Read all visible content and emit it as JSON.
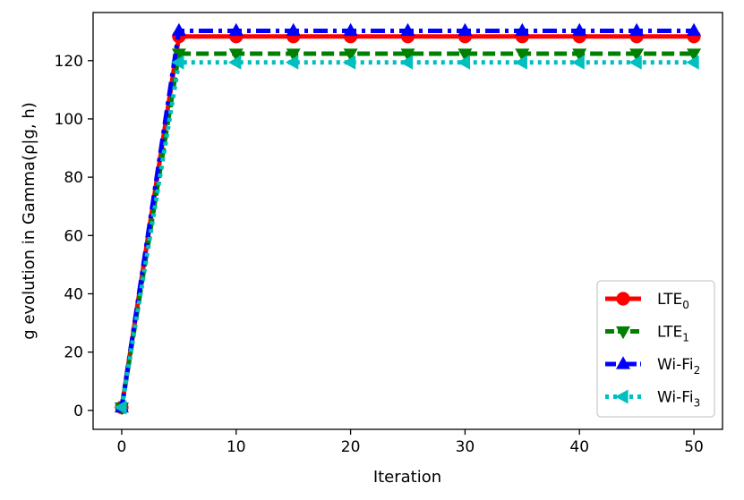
{
  "chart_data": {
    "type": "line",
    "xlabel": "Iteration",
    "ylabel": "g evolution in Gamma(ρ|g, h)",
    "xlim": [
      -2.5,
      52.5
    ],
    "ylim": [
      -6.5,
      136.5
    ],
    "xticks": [
      0,
      10,
      20,
      30,
      40,
      50
    ],
    "yticks": [
      0,
      20,
      40,
      60,
      80,
      100,
      120
    ],
    "grid": false,
    "legend_position": "lower right",
    "x": [
      0,
      5,
      10,
      15,
      20,
      25,
      30,
      35,
      40,
      45,
      50
    ],
    "series": [
      {
        "name": "LTE",
        "subscript": "0",
        "color": "#ff0000",
        "line_style": "solid",
        "marker": "circle",
        "values": [
          1,
          128.3,
          128.3,
          128.3,
          128.3,
          128.3,
          128.3,
          128.3,
          128.3,
          128.3,
          128.3
        ]
      },
      {
        "name": "LTE",
        "subscript": "1",
        "color": "#008000",
        "line_style": "dashed",
        "marker": "triangle-down",
        "values": [
          1,
          122.4,
          122.4,
          122.4,
          122.4,
          122.4,
          122.4,
          122.4,
          122.4,
          122.4,
          122.4
        ]
      },
      {
        "name": "Wi-Fi",
        "subscript": "2",
        "color": "#0000ff",
        "line_style": "dashdot",
        "marker": "triangle-up",
        "values": [
          1,
          130.2,
          130.2,
          130.2,
          130.2,
          130.2,
          130.2,
          130.2,
          130.2,
          130.2,
          130.2
        ]
      },
      {
        "name": "Wi-Fi",
        "subscript": "3",
        "color": "#00bfbf",
        "line_style": "dotted",
        "marker": "triangle-left",
        "values": [
          1,
          119.4,
          119.4,
          119.4,
          119.4,
          119.4,
          119.4,
          119.4,
          119.4,
          119.4,
          119.4
        ]
      }
    ]
  }
}
